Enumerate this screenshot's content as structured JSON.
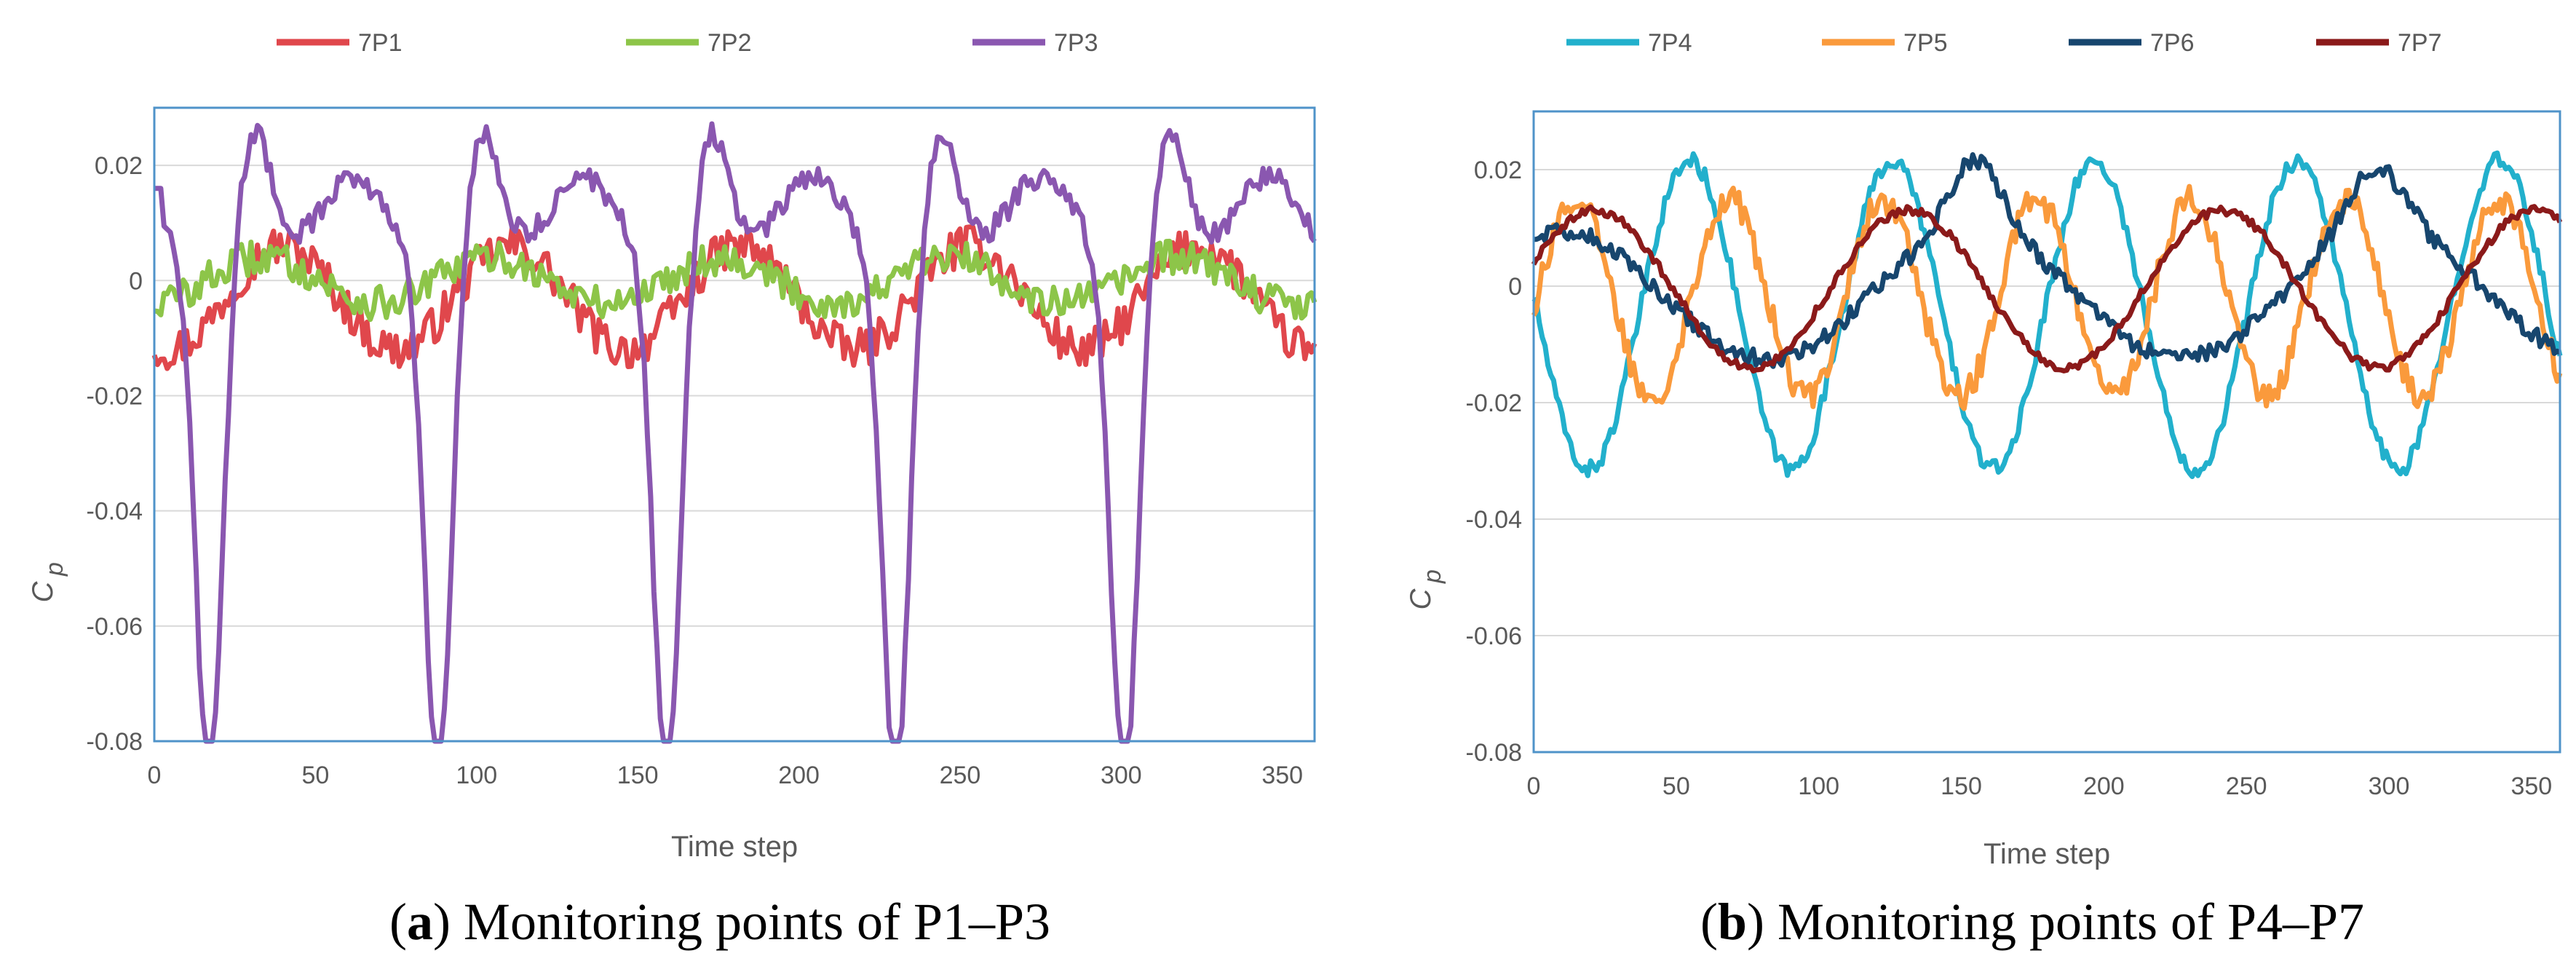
{
  "chart_data": [
    {
      "id": "a",
      "type": "line",
      "caption": {
        "open": "(",
        "letter": "a",
        "rest": ") Monitoring points of P1–P3"
      },
      "xlabel": "Time step",
      "ylabel": "C",
      "ylabel_sub": "p",
      "xlim": [
        0,
        360
      ],
      "ylim": [
        -0.08,
        0.03
      ],
      "xticks": [
        0,
        50,
        100,
        150,
        200,
        250,
        300,
        350
      ],
      "xtick_labels": [
        "0",
        "50",
        "100",
        "150",
        "200",
        "250",
        "300",
        "350"
      ],
      "yticks": [
        -0.08,
        -0.06,
        -0.04,
        -0.02,
        0,
        0.02
      ],
      "ytick_labels": [
        "-0.08",
        "-0.06",
        "-0.04",
        "-0.02",
        "0",
        "0.02"
      ],
      "grid": "horizontal",
      "legend": "top",
      "series": [
        {
          "name": "7P1",
          "color": "#e0474c",
          "kind": "p1"
        },
        {
          "name": "7P2",
          "color": "#8dc549",
          "kind": "p2"
        },
        {
          "name": "7P3",
          "color": "#8a57b0",
          "kind": "p3"
        }
      ]
    },
    {
      "id": "b",
      "type": "line",
      "caption": {
        "open": "(",
        "letter": "b",
        "rest": ") Monitoring points of P4–P7"
      },
      "xlabel": "Time step",
      "ylabel": "C",
      "ylabel_sub": "p",
      "xlim": [
        0,
        360
      ],
      "ylim": [
        -0.08,
        0.03
      ],
      "xticks": [
        0,
        50,
        100,
        150,
        200,
        250,
        300,
        350
      ],
      "xtick_labels": [
        "0",
        "50",
        "100",
        "150",
        "200",
        "250",
        "300",
        "350"
      ],
      "yticks": [
        -0.08,
        -0.06,
        -0.04,
        -0.02,
        0,
        0.02
      ],
      "ytick_labels": [
        "-0.08",
        "-0.06",
        "-0.04",
        "-0.02",
        "0",
        "0.02"
      ],
      "grid": "horizontal",
      "legend": "top",
      "series": [
        {
          "name": "7P4",
          "color": "#22b0cc",
          "kind": "p4"
        },
        {
          "name": "7P5",
          "color": "#fa9a3c",
          "kind": "p5"
        },
        {
          "name": "7P6",
          "color": "#17466e",
          "kind": "p6"
        },
        {
          "name": "7P7",
          "color": "#8b1a1a",
          "kind": "p7"
        }
      ]
    }
  ]
}
